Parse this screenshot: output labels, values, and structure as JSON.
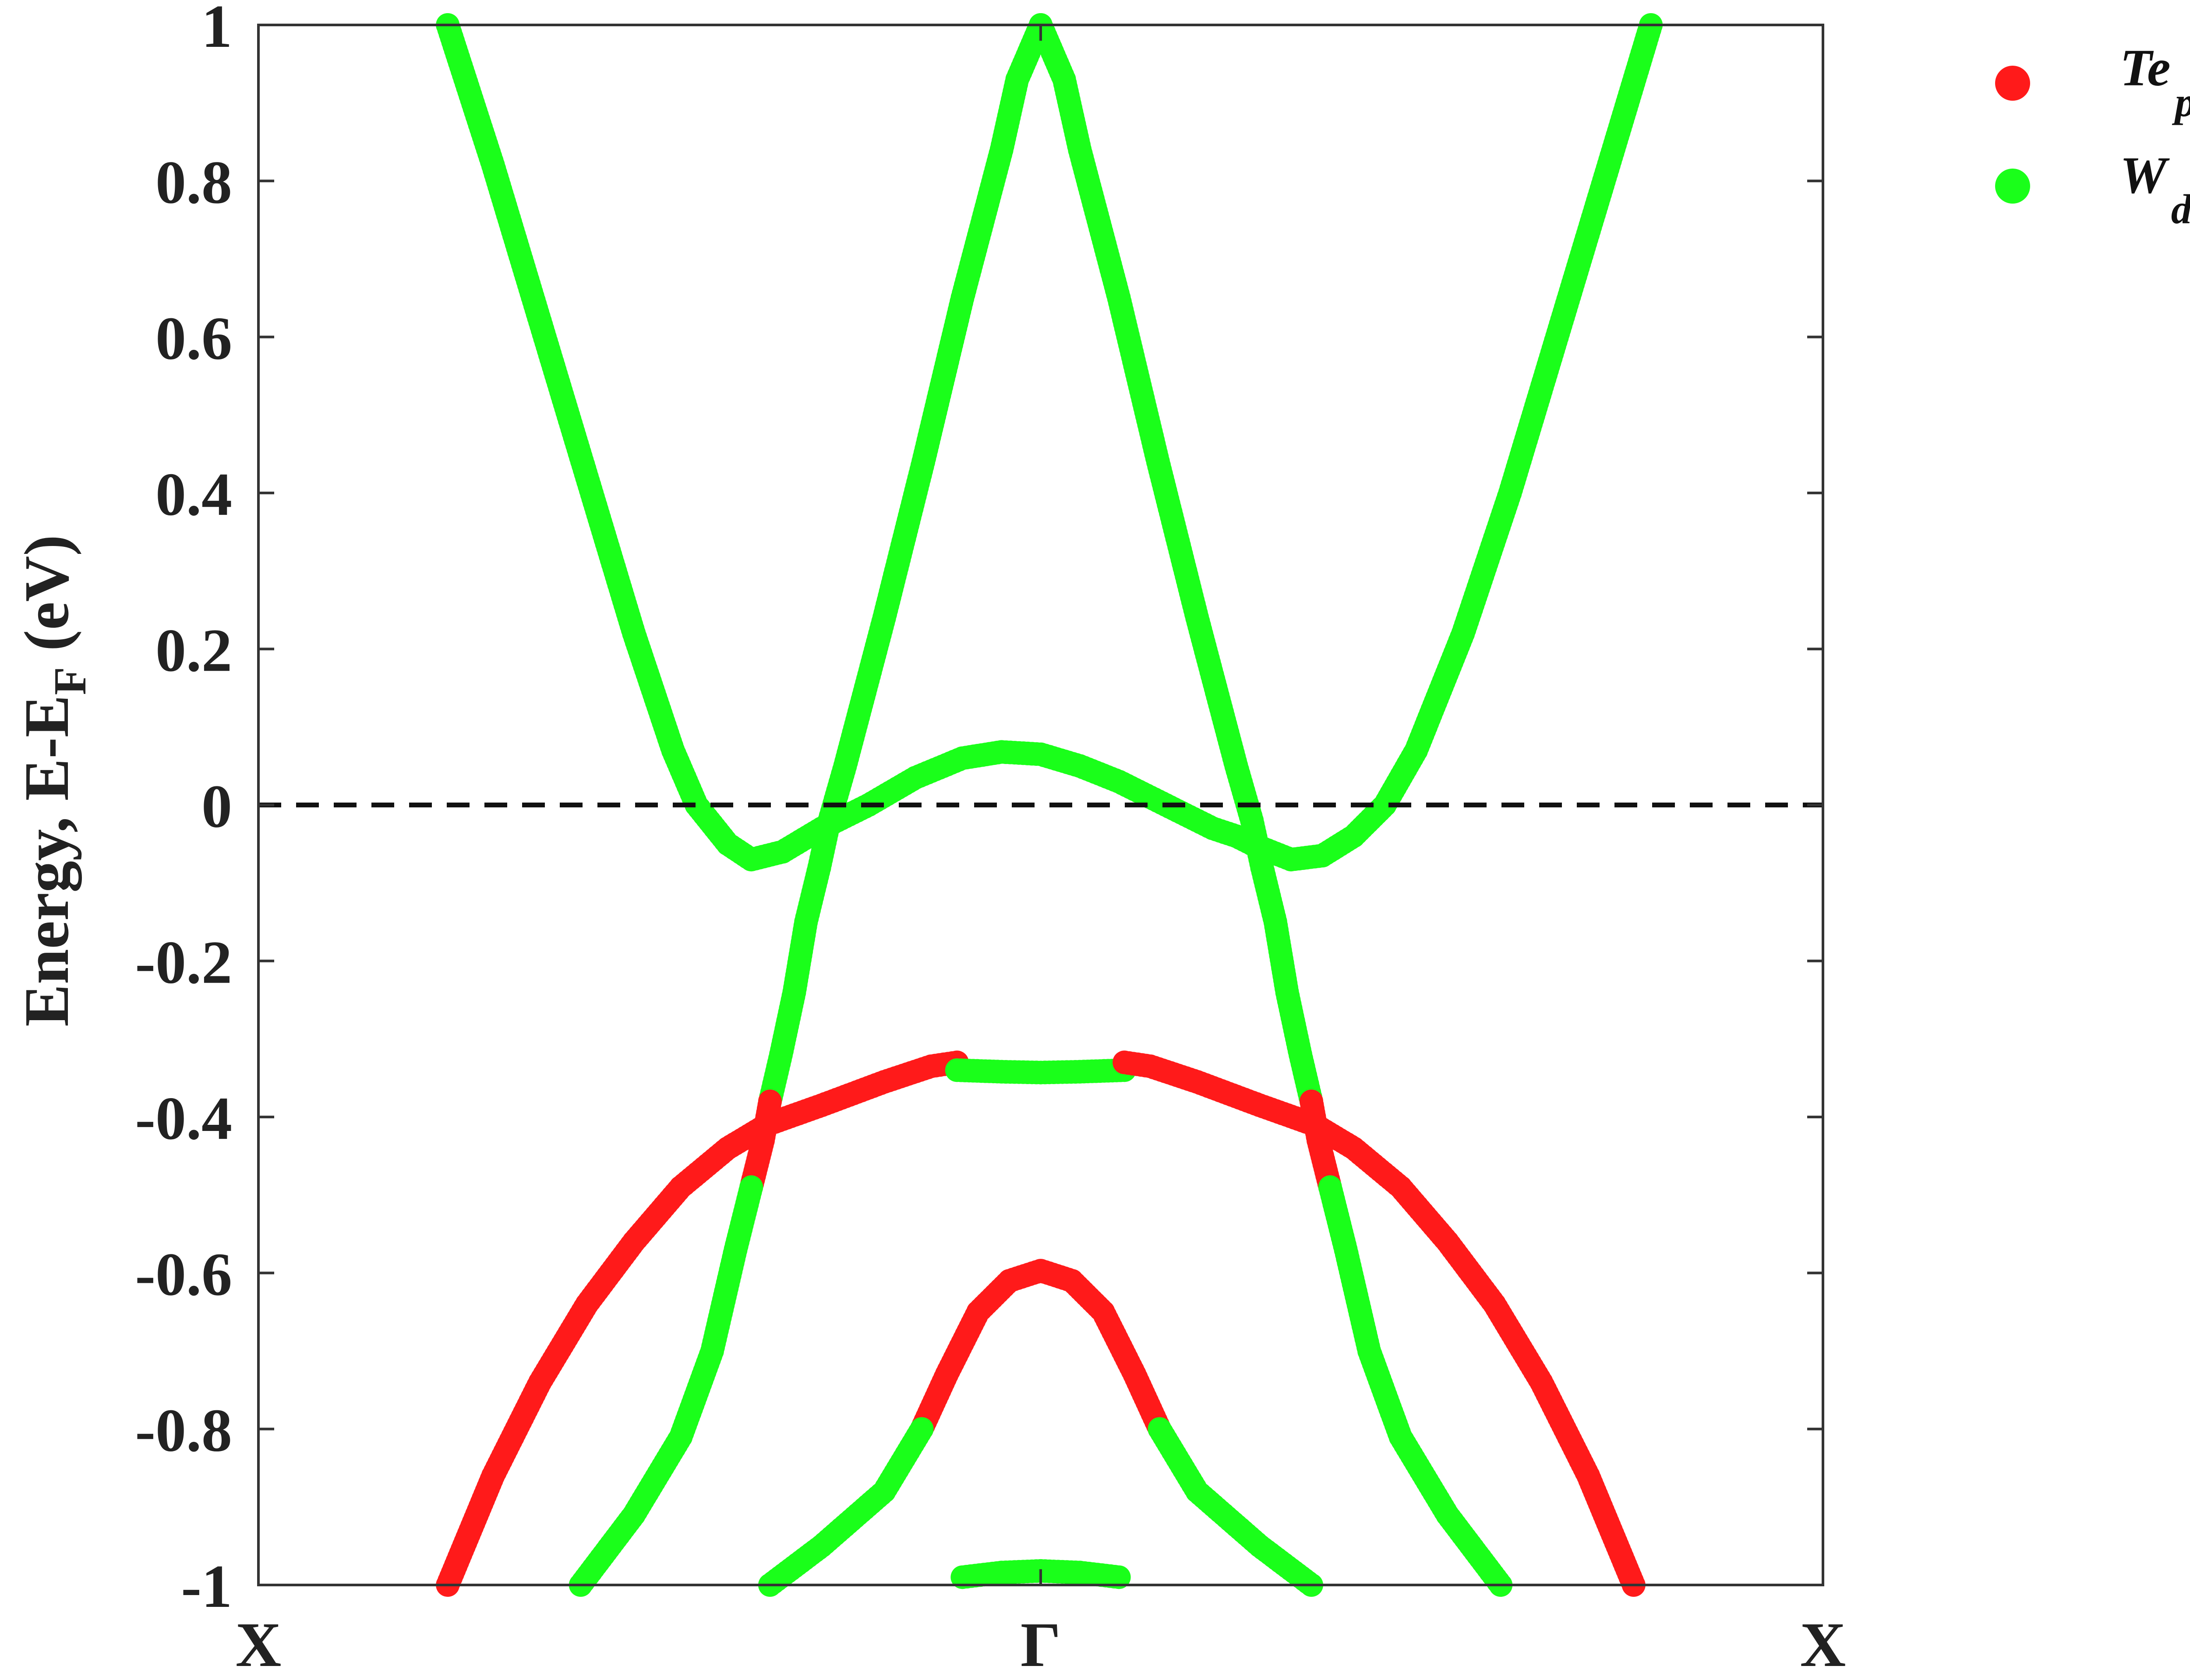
{
  "chart_data": {
    "type": "scatter",
    "ylabel_main": "Energy, E-E",
    "ylabel_sub": "F",
    "ylabel_tail": " (eV)",
    "xlim": [
      0,
      2
    ],
    "ylim": [
      -1,
      1
    ],
    "xticks": [
      {
        "x": 0,
        "label": "X"
      },
      {
        "x": 1,
        "label": "Γ"
      },
      {
        "x": 2,
        "label": "X"
      }
    ],
    "yticks": [
      {
        "y": 1,
        "label": "1"
      },
      {
        "y": 0.8,
        "label": "0.8"
      },
      {
        "y": 0.6,
        "label": "0.6"
      },
      {
        "y": 0.4,
        "label": "0.4"
      },
      {
        "y": 0.2,
        "label": "0.2"
      },
      {
        "y": 0,
        "label": "0"
      },
      {
        "y": -0.2,
        "label": "-0.2"
      },
      {
        "y": -0.4,
        "label": "-0.4"
      },
      {
        "y": -0.6,
        "label": "-0.6"
      },
      {
        "y": -0.8,
        "label": "-0.8"
      },
      {
        "y": -1,
        "label": "-1"
      }
    ],
    "fermi_level": 0,
    "fermi_line_style": "dashed",
    "legend_placement": "top-right, outside plot",
    "series": [
      {
        "name": "Te",
        "sub": "p",
        "color": "#ff1a1a"
      },
      {
        "name": "W",
        "sub": "d",
        "color": "#1aff1a"
      }
    ],
    "bands": [
      {
        "series": 1,
        "points": [
          [
            0.242,
            1.0
          ],
          [
            0.3,
            0.82
          ],
          [
            0.36,
            0.62
          ],
          [
            0.42,
            0.42
          ],
          [
            0.48,
            0.22
          ],
          [
            0.53,
            0.07
          ],
          [
            0.56,
            0.0
          ],
          [
            0.6,
            -0.05
          ],
          [
            0.63,
            -0.07
          ],
          [
            0.67,
            -0.06
          ]
        ]
      },
      {
        "series": 1,
        "points": [
          [
            0.67,
            -0.06
          ],
          [
            0.72,
            -0.03
          ],
          [
            0.78,
            0.0
          ],
          [
            0.84,
            0.035
          ],
          [
            0.9,
            0.06
          ],
          [
            0.95,
            0.068
          ],
          [
            1.0,
            0.065
          ],
          [
            1.05,
            0.05
          ],
          [
            1.1,
            0.03
          ],
          [
            1.16,
            0.0
          ],
          [
            1.22,
            -0.03
          ],
          [
            1.25,
            -0.04
          ],
          [
            1.27,
            -0.05
          ]
        ]
      },
      {
        "series": 1,
        "points": [
          [
            1.27,
            -0.05
          ],
          [
            1.32,
            -0.07
          ],
          [
            1.36,
            -0.065
          ],
          [
            1.4,
            -0.04
          ],
          [
            1.44,
            0.0
          ],
          [
            1.48,
            0.07
          ],
          [
            1.54,
            0.22
          ],
          [
            1.6,
            0.4
          ],
          [
            1.66,
            0.6
          ],
          [
            1.72,
            0.8
          ],
          [
            1.78,
            1.0
          ]
        ]
      },
      {
        "series": 1,
        "points": [
          [
            0.717,
            -0.08
          ],
          [
            0.73,
            -0.02
          ],
          [
            0.75,
            0.05
          ],
          [
            0.8,
            0.24
          ],
          [
            0.85,
            0.44
          ],
          [
            0.9,
            0.65
          ],
          [
            0.95,
            0.84
          ],
          [
            0.97,
            0.93
          ],
          [
            1.0,
            1.0
          ]
        ]
      },
      {
        "series": 1,
        "points": [
          [
            1.0,
            1.0
          ],
          [
            1.03,
            0.93
          ],
          [
            1.05,
            0.84
          ],
          [
            1.1,
            0.65
          ],
          [
            1.15,
            0.44
          ],
          [
            1.2,
            0.24
          ],
          [
            1.25,
            0.05
          ],
          [
            1.27,
            -0.02
          ],
          [
            1.283,
            -0.08
          ]
        ]
      },
      {
        "series": 1,
        "points": [
          [
            0.717,
            -0.08
          ],
          [
            0.7,
            -0.15
          ],
          [
            0.685,
            -0.24
          ],
          [
            0.668,
            -0.32
          ],
          [
            0.654,
            -0.38
          ]
        ]
      },
      {
        "series": 1,
        "points": [
          [
            1.283,
            -0.08
          ],
          [
            1.3,
            -0.15
          ],
          [
            1.315,
            -0.24
          ],
          [
            1.332,
            -0.32
          ],
          [
            1.346,
            -0.38
          ]
        ]
      },
      {
        "series": 0,
        "points": [
          [
            0.654,
            -0.38
          ],
          [
            0.645,
            -0.43
          ],
          [
            0.63,
            -0.49
          ]
        ]
      },
      {
        "series": 0,
        "points": [
          [
            1.346,
            -0.38
          ],
          [
            1.355,
            -0.43
          ],
          [
            1.37,
            -0.49
          ]
        ]
      },
      {
        "series": 1,
        "points": [
          [
            0.63,
            -0.49
          ],
          [
            0.61,
            -0.57
          ],
          [
            0.58,
            -0.7
          ],
          [
            0.54,
            -0.81
          ],
          [
            0.48,
            -0.91
          ],
          [
            0.412,
            -1.0
          ]
        ]
      },
      {
        "series": 1,
        "points": [
          [
            1.37,
            -0.49
          ],
          [
            1.39,
            -0.57
          ],
          [
            1.42,
            -0.7
          ],
          [
            1.46,
            -0.81
          ],
          [
            1.52,
            -0.91
          ],
          [
            1.588,
            -1.0
          ]
        ]
      },
      {
        "series": 0,
        "points": [
          [
            0.242,
            -1.0
          ],
          [
            0.3,
            -0.86
          ],
          [
            0.36,
            -0.74
          ],
          [
            0.42,
            -0.64
          ],
          [
            0.48,
            -0.56
          ],
          [
            0.54,
            -0.49
          ],
          [
            0.6,
            -0.44
          ],
          [
            0.65,
            -0.41
          ]
        ]
      },
      {
        "series": 0,
        "points": [
          [
            0.65,
            -0.41
          ],
          [
            0.72,
            -0.385
          ],
          [
            0.8,
            -0.355
          ],
          [
            0.86,
            -0.335
          ],
          [
            0.893,
            -0.33
          ]
        ]
      },
      {
        "series": 1,
        "points": [
          [
            0.893,
            -0.34
          ],
          [
            0.95,
            -0.342
          ],
          [
            1.0,
            -0.343
          ],
          [
            1.05,
            -0.342
          ],
          [
            1.107,
            -0.34
          ]
        ]
      },
      {
        "series": 0,
        "points": [
          [
            1.107,
            -0.33
          ],
          [
            1.14,
            -0.335
          ],
          [
            1.2,
            -0.355
          ],
          [
            1.28,
            -0.385
          ],
          [
            1.35,
            -0.41
          ]
        ]
      },
      {
        "series": 0,
        "points": [
          [
            1.35,
            -0.41
          ],
          [
            1.4,
            -0.44
          ],
          [
            1.46,
            -0.49
          ],
          [
            1.52,
            -0.56
          ],
          [
            1.58,
            -0.64
          ],
          [
            1.64,
            -0.74
          ],
          [
            1.7,
            -0.86
          ],
          [
            1.758,
            -1.0
          ]
        ]
      },
      {
        "series": 0,
        "points": [
          [
            0.848,
            -0.8
          ],
          [
            0.88,
            -0.73
          ],
          [
            0.92,
            -0.65
          ],
          [
            0.96,
            -0.61
          ],
          [
            1.0,
            -0.597
          ],
          [
            1.04,
            -0.61
          ],
          [
            1.08,
            -0.65
          ],
          [
            1.12,
            -0.73
          ],
          [
            1.152,
            -0.8
          ]
        ]
      },
      {
        "series": 1,
        "points": [
          [
            0.848,
            -0.8
          ],
          [
            0.8,
            -0.88
          ],
          [
            0.72,
            -0.95
          ],
          [
            0.654,
            -1.0
          ]
        ]
      },
      {
        "series": 1,
        "points": [
          [
            1.152,
            -0.8
          ],
          [
            1.2,
            -0.88
          ],
          [
            1.28,
            -0.95
          ],
          [
            1.346,
            -1.0
          ]
        ]
      },
      {
        "series": 1,
        "points": [
          [
            0.9,
            -0.99
          ],
          [
            0.95,
            -0.984
          ],
          [
            1.0,
            -0.982
          ],
          [
            1.05,
            -0.984
          ],
          [
            1.1,
            -0.99
          ]
        ]
      }
    ]
  },
  "colors": {
    "axis": "#333333",
    "fermi_line": "#111111",
    "background": "#ffffff"
  }
}
